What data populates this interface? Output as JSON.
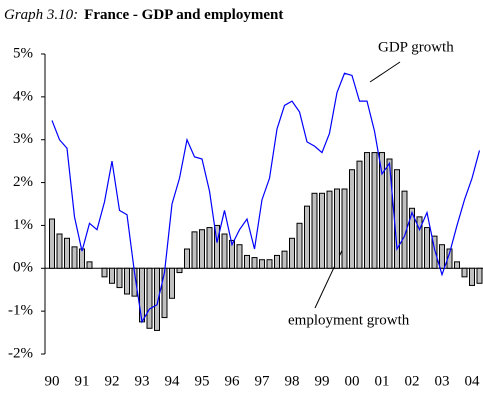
{
  "chart_data": {
    "type": "bar-line",
    "title_label": "Graph 3.10:",
    "title": "France - GDP and employment",
    "categories": [
      "90",
      null,
      null,
      null,
      "91",
      null,
      null,
      null,
      "92",
      null,
      null,
      null,
      "93",
      null,
      null,
      null,
      "94",
      null,
      null,
      null,
      "95",
      null,
      null,
      null,
      "96",
      null,
      null,
      null,
      "97",
      null,
      null,
      null,
      "98",
      null,
      null,
      null,
      "99",
      null,
      null,
      null,
      "00",
      null,
      null,
      null,
      "01",
      null,
      null,
      null,
      "02",
      null,
      null,
      null,
      "03",
      null,
      null,
      null,
      "04",
      null
    ],
    "series": [
      {
        "name": "employment growth",
        "type": "bar",
        "color": "#c0c0c0",
        "values": [
          1.15,
          0.8,
          0.7,
          0.5,
          0.45,
          0.15,
          0.0,
          -0.2,
          -0.35,
          -0.45,
          -0.6,
          -0.65,
          -1.25,
          -1.4,
          -1.45,
          -1.15,
          -0.7,
          -0.1,
          0.45,
          0.85,
          0.9,
          0.95,
          1.0,
          0.8,
          0.65,
          0.55,
          0.3,
          0.25,
          0.2,
          0.2,
          0.3,
          0.4,
          0.7,
          1.05,
          1.45,
          1.75,
          1.75,
          1.8,
          1.85,
          1.85,
          2.3,
          2.5,
          2.7,
          2.7,
          2.7,
          2.55,
          2.3,
          1.8,
          1.4,
          1.2,
          0.95,
          0.75,
          0.55,
          0.45,
          0.15,
          -0.2,
          -0.4,
          -0.35
        ]
      },
      {
        "name": "GDP growth",
        "type": "line",
        "color": "#0000ff",
        "values": [
          3.45,
          3.0,
          2.8,
          1.2,
          0.4,
          1.05,
          0.9,
          1.55,
          2.5,
          1.35,
          1.25,
          -0.1,
          -1.25,
          -0.95,
          -0.85,
          -0.1,
          1.5,
          2.1,
          3.0,
          2.6,
          2.55,
          1.8,
          0.6,
          1.35,
          0.55,
          0.9,
          1.15,
          0.45,
          1.6,
          2.1,
          3.25,
          3.8,
          3.9,
          3.65,
          2.95,
          2.85,
          2.7,
          3.15,
          4.1,
          4.55,
          4.5,
          3.9,
          3.9,
          3.2,
          2.2,
          2.45,
          0.45,
          0.75,
          1.3,
          0.9,
          1.3,
          0.45,
          -0.15,
          0.35,
          1.0,
          1.6,
          2.1,
          2.75
        ]
      }
    ],
    "ylim": [
      -2,
      5
    ],
    "yticks": [
      {
        "value": -2,
        "label": "-2%"
      },
      {
        "value": -1,
        "label": "-1%"
      },
      {
        "value": 0,
        "label": "0%"
      },
      {
        "value": 1,
        "label": "1%"
      },
      {
        "value": 2,
        "label": "2%"
      },
      {
        "value": 3,
        "label": "3%"
      },
      {
        "value": 4,
        "label": "4%"
      },
      {
        "value": 5,
        "label": "5%"
      }
    ]
  }
}
